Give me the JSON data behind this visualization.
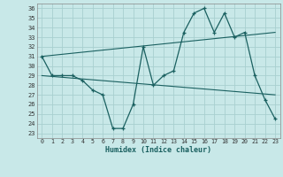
{
  "xlabel": "Humidex (Indice chaleur)",
  "bg_color": "#c8e8e8",
  "grid_color": "#a8d0d0",
  "line_color": "#1a6060",
  "xlim": [
    -0.5,
    23.5
  ],
  "ylim": [
    22.5,
    36.5
  ],
  "yticks": [
    23,
    24,
    25,
    26,
    27,
    28,
    29,
    30,
    31,
    32,
    33,
    34,
    35,
    36
  ],
  "xticks": [
    0,
    1,
    2,
    3,
    4,
    5,
    6,
    7,
    8,
    9,
    10,
    11,
    12,
    13,
    14,
    15,
    16,
    17,
    18,
    19,
    20,
    21,
    22,
    23
  ],
  "series1_x": [
    0,
    1,
    2,
    3,
    4,
    5,
    6,
    7,
    8,
    9,
    10,
    11,
    12,
    13,
    14,
    15,
    16,
    17,
    18,
    19,
    20,
    21,
    22,
    23
  ],
  "series1_y": [
    31.0,
    29.0,
    29.0,
    29.0,
    28.5,
    27.5,
    27.0,
    23.5,
    23.5,
    26.0,
    32.0,
    28.0,
    29.0,
    29.5,
    33.5,
    35.5,
    36.0,
    33.5,
    35.5,
    33.0,
    33.5,
    29.0,
    26.5,
    24.5
  ],
  "series2_x": [
    0,
    23
  ],
  "series2_y": [
    29.0,
    27.0
  ],
  "series3_x": [
    0,
    23
  ],
  "series3_y": [
    31.0,
    33.5
  ]
}
